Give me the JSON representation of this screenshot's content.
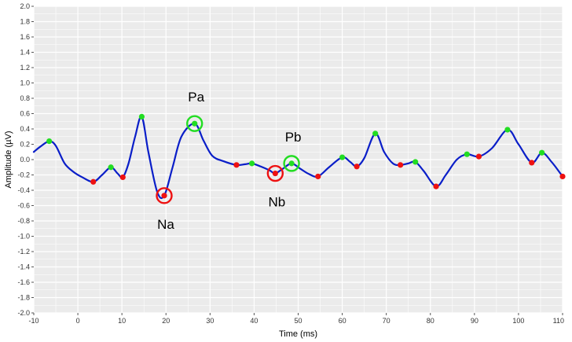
{
  "chart_data": {
    "type": "line",
    "xlabel": "Time (ms)",
    "ylabel": "Amplitude (µV)",
    "xlim": [
      -10,
      110
    ],
    "ylim": [
      -2.0,
      2.0
    ],
    "x_ticks": [
      -10,
      0,
      10,
      20,
      30,
      40,
      50,
      60,
      70,
      80,
      90,
      100,
      110
    ],
    "y_ticks": [
      -2.0,
      -1.8,
      -1.6,
      -1.4,
      -1.2,
      -1.0,
      -0.8,
      -0.6,
      -0.4,
      -0.2,
      0.0,
      0.2,
      0.4,
      0.6,
      0.8,
      1.0,
      1.2,
      1.4,
      1.6,
      1.8,
      2.0
    ],
    "x_tick_labels": [
      "-10",
      "0",
      "10",
      "20",
      "30",
      "40",
      "50",
      "60",
      "70",
      "80",
      "90",
      "100",
      "110"
    ],
    "y_tick_labels": [
      "-2.0",
      "-1.8",
      "-1.6",
      "-1.4",
      "-1.2",
      "-1.0",
      "-0.8",
      "-0.6",
      "-0.4",
      "-0.2",
      "0.0",
      "0.2",
      "0.4",
      "0.6",
      "0.8",
      "1.0",
      "1.2",
      "1.4",
      "1.6",
      "1.8",
      "2.0"
    ],
    "grid": true,
    "colors": {
      "line": "#0a1ec8",
      "peak": "#22dd22",
      "trough": "#ee1111",
      "panel": "#ebebeb",
      "grid": "#ffffff"
    },
    "series": [
      {
        "x": [
          -10,
          -8.5,
          -6.5,
          -5,
          -3,
          -1,
          1,
          3.5,
          5.5,
          7.5,
          9,
          10.2,
          11.5,
          13,
          14.5,
          16,
          18,
          19.6,
          21.5,
          23.5,
          26.5,
          28.5,
          30.5,
          33,
          36,
          38,
          39.5,
          41.5,
          43.5,
          44.8,
          46.5,
          48.5,
          50.5,
          52.5,
          54.5,
          57,
          60,
          61.8,
          63.3,
          65,
          67.5,
          69.5,
          71.5,
          73.2,
          75,
          76.6,
          78.5,
          81.3,
          83.5,
          86,
          88.3,
          91,
          94,
          97.5,
          100,
          103,
          105.3,
          107.5,
          109.5,
          110
        ],
        "y": [
          0.1,
          0.17,
          0.24,
          0.18,
          -0.05,
          -0.16,
          -0.23,
          -0.29,
          -0.2,
          -0.1,
          -0.18,
          -0.23,
          -0.05,
          0.3,
          0.56,
          0.1,
          -0.42,
          -0.47,
          -0.1,
          0.3,
          0.47,
          0.25,
          0.05,
          -0.02,
          -0.07,
          -0.06,
          -0.05,
          -0.09,
          -0.14,
          -0.18,
          -0.12,
          -0.05,
          -0.12,
          -0.19,
          -0.22,
          -0.1,
          0.03,
          -0.03,
          -0.09,
          0.02,
          0.34,
          0.1,
          -0.05,
          -0.07,
          -0.05,
          -0.03,
          -0.15,
          -0.35,
          -0.2,
          0.0,
          0.07,
          0.04,
          0.15,
          0.39,
          0.2,
          -0.04,
          0.09,
          -0.03,
          -0.18,
          -0.22
        ]
      }
    ],
    "peaks": [
      {
        "x": -6.5,
        "y": 0.24
      },
      {
        "x": 7.5,
        "y": -0.1
      },
      {
        "x": 14.5,
        "y": 0.56
      },
      {
        "x": 26.5,
        "y": 0.47
      },
      {
        "x": 39.5,
        "y": -0.05
      },
      {
        "x": 48.5,
        "y": -0.05
      },
      {
        "x": 60,
        "y": 0.03
      },
      {
        "x": 67.5,
        "y": 0.34
      },
      {
        "x": 76.6,
        "y": -0.03
      },
      {
        "x": 88.3,
        "y": 0.07
      },
      {
        "x": 97.5,
        "y": 0.39
      },
      {
        "x": 105.3,
        "y": 0.09
      }
    ],
    "troughs": [
      {
        "x": 3.5,
        "y": -0.29
      },
      {
        "x": 10.2,
        "y": -0.23
      },
      {
        "x": 19.6,
        "y": -0.47
      },
      {
        "x": 36,
        "y": -0.07
      },
      {
        "x": 44.8,
        "y": -0.18
      },
      {
        "x": 54.5,
        "y": -0.22
      },
      {
        "x": 63.3,
        "y": -0.09
      },
      {
        "x": 73.2,
        "y": -0.07
      },
      {
        "x": 81.3,
        "y": -0.35
      },
      {
        "x": 91,
        "y": 0.04
      },
      {
        "x": 103,
        "y": -0.04
      },
      {
        "x": 110,
        "y": -0.22
      }
    ],
    "annotations": [
      {
        "text": "Pa",
        "x": 26.5,
        "y": 0.47,
        "kind": "peak",
        "label_side": "above"
      },
      {
        "text": "Na",
        "x": 19.6,
        "y": -0.47,
        "kind": "trough",
        "label_side": "below"
      },
      {
        "text": "Pb",
        "x": 48.5,
        "y": -0.05,
        "kind": "peak",
        "label_side": "above"
      },
      {
        "text": "Nb",
        "x": 44.8,
        "y": -0.18,
        "kind": "trough",
        "label_side": "below"
      }
    ]
  }
}
